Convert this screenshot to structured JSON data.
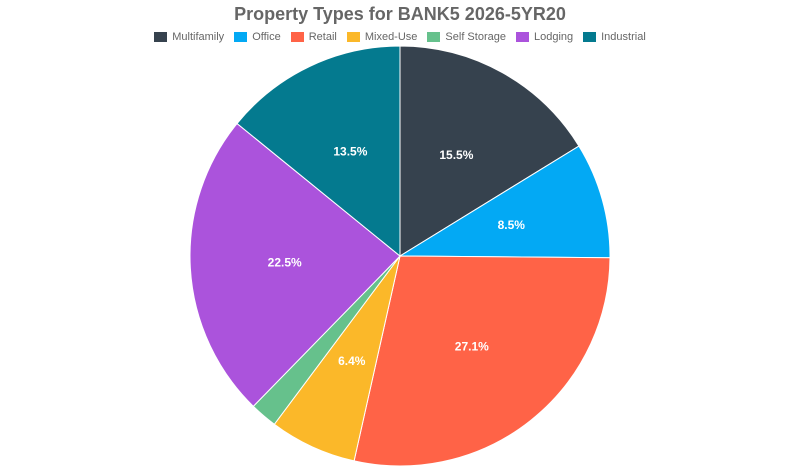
{
  "chart_data": {
    "type": "pie",
    "title": "Property Types for BANK5 2026-5YR20",
    "categories": [
      "Multifamily",
      "Office",
      "Retail",
      "Mixed-Use",
      "Self Storage",
      "Lodging",
      "Industrial"
    ],
    "values": [
      15.5,
      8.5,
      27.1,
      6.4,
      2.0,
      22.5,
      13.5
    ],
    "labels": [
      "15.5%",
      "8.5%",
      "27.1%",
      "6.4%",
      "",
      "22.5%",
      "13.5%"
    ],
    "colors": [
      "#36424e",
      "#03a9f4",
      "#ff6347",
      "#fbb829",
      "#66c18c",
      "#ab53dc",
      "#047a8f"
    ],
    "legend_position": "top",
    "start_angle_deg": 0,
    "direction": "clockwise"
  },
  "header": {
    "title": "Property Types for BANK5 2026-5YR20"
  }
}
